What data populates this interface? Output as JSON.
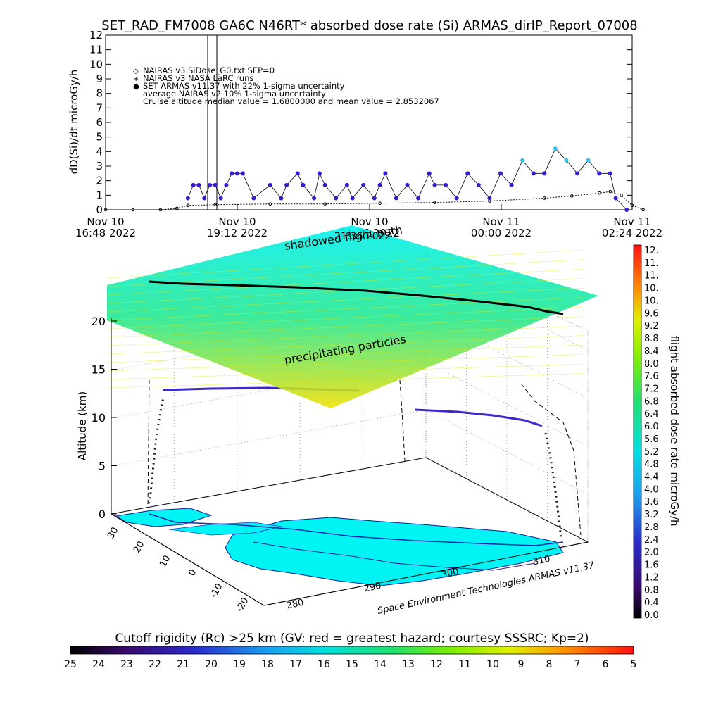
{
  "title": "SET_RAD_FM7008  GA6C N46RT* absorbed dose rate (Si) ARMAS_dirIP_Report_07008",
  "top_chart": {
    "ylabel": "dD(Si)/dt microGy/h",
    "yticks": [
      "0",
      "1",
      "2",
      "3",
      "4",
      "5",
      "6",
      "7",
      "8",
      "9",
      "10",
      "11",
      "12"
    ],
    "xticks": [
      {
        "line1": "Nov 10",
        "line2": "16:48 2022"
      },
      {
        "line1": "Nov 10",
        "line2": "19:12 2022"
      },
      {
        "line1": "Nov 10",
        "line2": "21:36 2022"
      },
      {
        "line1": "Nov 11",
        "line2": "00:00 2022"
      },
      {
        "line1": "Nov 11",
        "line2": "02:24 2022"
      }
    ],
    "legend": [
      {
        "symbol": "◇",
        "text": "NAIRAS v3 SiDose_G0.txt SEP=0"
      },
      {
        "symbol": "+",
        "text": "NAIRAS v3 NASA LaRC runs"
      },
      {
        "symbol": "●",
        "text": "SET ARMAS v11.37 with 22% 1-sigma uncertainty"
      },
      {
        "symbol": "",
        "text": "average NAIRAS v2 10% 1-sigma uncertainty"
      },
      {
        "symbol": "",
        "text": "Cruise altitude median value = 1.6800000 and mean value = 2.8532067"
      }
    ],
    "colors": {
      "armas": "#3a1acc",
      "armas_alt": "#2ec4f0",
      "model": "#000000"
    }
  },
  "chart_data": [
    {
      "type": "scatter",
      "title": "SET_RAD_FM7008  GA6C N46RT* absorbed dose rate (Si) ARMAS_dirIP_Report_07008",
      "ylabel": "dD(Si)/dt microGy/h",
      "xlabel": "",
      "x_range": [
        "Nov 10 16:48 2022",
        "Nov 11 02:24 2022"
      ],
      "ylim": [
        0,
        12
      ],
      "series": [
        {
          "name": "SET ARMAS v11.37 with 22% 1-sigma uncertainty",
          "x_hours_since_1648": [
            1.5,
            1.6,
            1.7,
            1.8,
            1.9,
            2.0,
            2.1,
            2.2,
            2.3,
            2.4,
            2.5,
            2.7,
            3.0,
            3.2,
            3.3,
            3.5,
            3.6,
            3.8,
            3.9,
            4.0,
            4.2,
            4.4,
            4.5,
            4.7,
            4.9,
            5.0,
            5.1,
            5.3,
            5.5,
            5.7,
            5.9,
            6.0,
            6.2,
            6.4,
            6.6,
            6.8,
            7.0,
            7.2,
            7.4,
            7.6,
            7.8,
            8.0,
            8.2,
            8.4,
            8.6,
            8.8,
            9.0,
            9.2,
            9.3,
            9.5
          ],
          "values": [
            0.8,
            1.7,
            1.7,
            0.8,
            1.7,
            1.7,
            0.8,
            1.7,
            2.5,
            2.5,
            2.5,
            0.8,
            1.7,
            0.8,
            1.7,
            2.5,
            1.7,
            0.8,
            2.5,
            1.7,
            0.8,
            1.7,
            0.8,
            1.7,
            0.8,
            1.7,
            2.5,
            0.8,
            1.7,
            0.8,
            2.5,
            1.7,
            1.7,
            0.8,
            2.5,
            1.7,
            0.8,
            2.5,
            1.7,
            3.4,
            2.5,
            2.5,
            4.2,
            3.4,
            2.5,
            3.4,
            2.5,
            2.5,
            0.8,
            0.0
          ]
        },
        {
          "name": "NAIRAS v3 SiDose_G0.txt SEP=0",
          "x_hours_since_1648": [
            0.0,
            0.5,
            1.0,
            1.3,
            1.5,
            2.0,
            3.0,
            4.0,
            5.0,
            6.0,
            7.0,
            8.0,
            8.5,
            9.0,
            9.2,
            9.4,
            9.6,
            9.8
          ],
          "values": [
            0.0,
            0.0,
            0.0,
            0.1,
            0.3,
            0.35,
            0.4,
            0.4,
            0.45,
            0.5,
            0.6,
            0.8,
            0.95,
            1.15,
            1.25,
            1.0,
            0.3,
            0.0
          ]
        }
      ]
    },
    {
      "type": "heatmap",
      "title": "",
      "ylabel": "Altitude (km)",
      "z_ticks": [
        "0",
        "5",
        "10",
        "15",
        "20"
      ],
      "annotations": [
        "shadowed flight path",
        "precipitating particles"
      ],
      "lon_ticks": [
        "280",
        "290",
        "300",
        "310"
      ],
      "lat_ticks": [
        "30",
        "20",
        "10",
        "0",
        "-10",
        "-20"
      ],
      "credit": "Space Environment Technologies ARMAS v11.37"
    }
  ],
  "map3d": {
    "ylabel": "Altitude (km)",
    "zticks": [
      "0",
      "5",
      "10",
      "15",
      "20"
    ],
    "annot_shadow": "shadowed flight path",
    "annot_precip": "precipitating particles",
    "lat_ticks": [
      "30",
      "20",
      "10",
      "0",
      "-10",
      "-20"
    ],
    "lon_ticks": [
      "280",
      "290",
      "300",
      "310"
    ],
    "credit": "Space Environment Technologies ARMAS v11.37",
    "top_xtick_overlap": "21:36 2022"
  },
  "right_colorbar": {
    "label": "flight absorbed dose rate microGy/h",
    "ticks": [
      "12.",
      "11.",
      "11.",
      "10.",
      "10.",
      "9.6",
      "9.2",
      "8.8",
      "8.4",
      "8.0",
      "7.6",
      "7.2",
      "6.8",
      "6.4",
      "6.0",
      "5.6",
      "5.2",
      "4.8",
      "4.4",
      "4.0",
      "3.6",
      "3.2",
      "2.8",
      "2.4",
      "2.0",
      "1.6",
      "1.2",
      "0.8",
      "0.4",
      "0.0"
    ]
  },
  "bottom_colorbar": {
    "label": "Cutoff rigidity (Rc) >25 km (GV: red = greatest hazard; courtesy SSSRC; Kp=2)",
    "ticks": [
      "25",
      "24",
      "23",
      "22",
      "21",
      "20",
      "19",
      "18",
      "17",
      "16",
      "15",
      "14",
      "13",
      "12",
      "11",
      "10",
      "9",
      "8",
      "7",
      "6",
      "5"
    ]
  }
}
